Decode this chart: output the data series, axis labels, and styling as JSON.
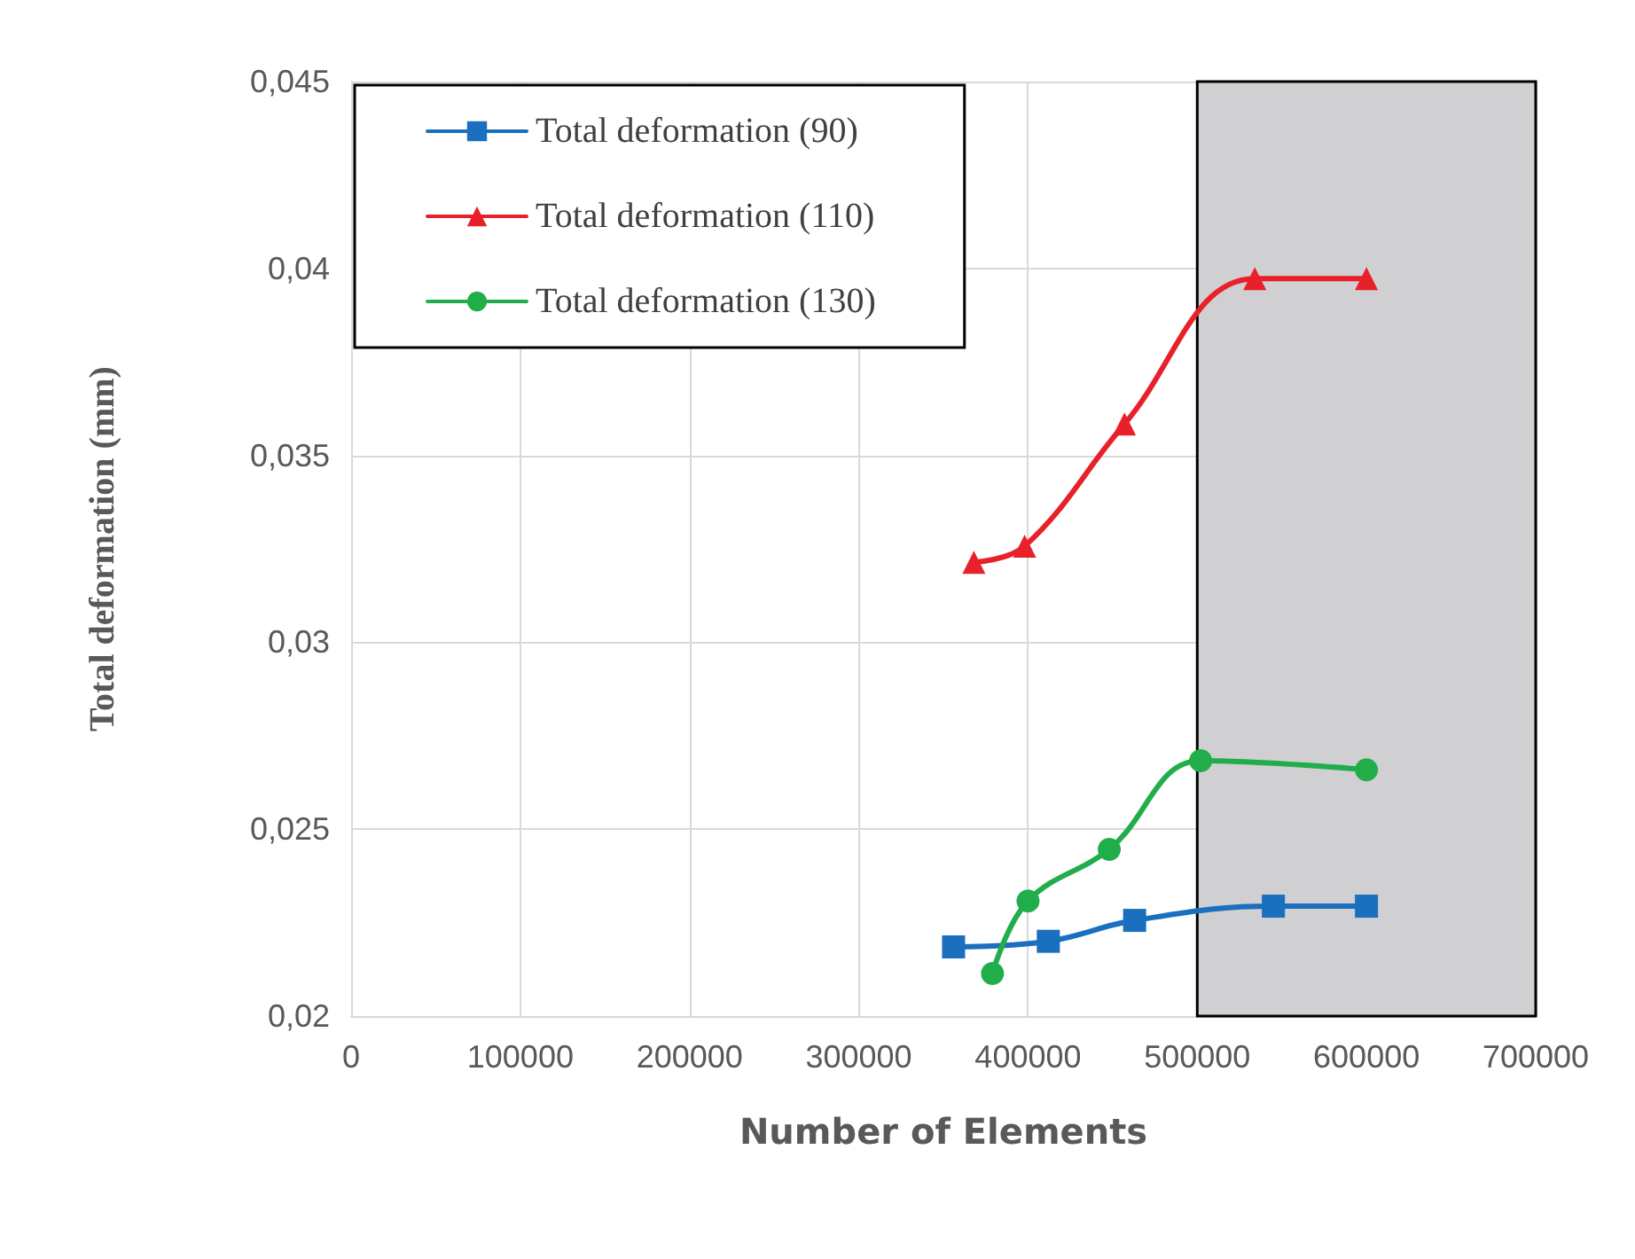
{
  "chart_data": {
    "type": "line",
    "xlabel": "Number of Elements",
    "ylabel": "Total deformation (mm)",
    "xlim": [
      0,
      700000
    ],
    "xticks": [
      0,
      100000,
      200000,
      300000,
      400000,
      500000,
      600000,
      700000
    ],
    "ylim": [
      0.02,
      0.045
    ],
    "yticks": [
      {
        "value": 0.02,
        "label": "0,02"
      },
      {
        "value": 0.025,
        "label": "0,025"
      },
      {
        "value": 0.03,
        "label": "0,03"
      },
      {
        "value": 0.035,
        "label": "0,035"
      },
      {
        "value": 0.04,
        "label": "0,04"
      },
      {
        "value": 0.045,
        "label": "0,045"
      }
    ],
    "grid": true,
    "legend": "top left",
    "bands": [
      {
        "axis": "x",
        "from": 500000,
        "to": 700000,
        "color": "#d0d0d3"
      }
    ],
    "series": [
      {
        "name": "Total deformation (90)",
        "color": "#1a6fbf",
        "marker": "square",
        "x": [
          356000,
          412000,
          463000,
          545000,
          600000
        ],
        "values": [
          0.02185,
          0.022,
          0.02256,
          0.02294,
          0.02294
        ]
      },
      {
        "name": "Total deformation (110)",
        "color": "#e8202a",
        "marker": "triangle",
        "x": [
          368000,
          398000,
          457000,
          534000,
          600000
        ],
        "values": [
          0.03214,
          0.03257,
          0.03584,
          0.03973,
          0.03973
        ]
      },
      {
        "name": "Total deformation (130)",
        "color": "#22ad4b",
        "marker": "circle",
        "x": [
          379000,
          400000,
          448000,
          502000,
          600000
        ],
        "values": [
          0.02114,
          0.02308,
          0.02446,
          0.02683,
          0.02659
        ]
      }
    ]
  }
}
